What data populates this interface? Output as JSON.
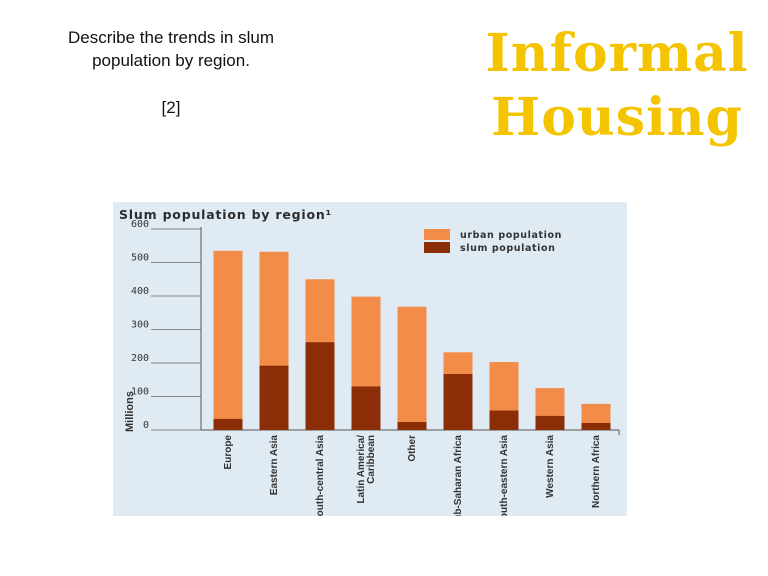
{
  "slide": {
    "question_line1": "Describe the trends in slum",
    "question_line2": "population by region.",
    "marks": "[2]",
    "title_line1": "Informal",
    "title_line2": "Housing"
  },
  "colors": {
    "title": "#f5c400",
    "urban": "#f28c48",
    "slum": "#8b2e08",
    "panel_background": "#dfeaf3"
  },
  "chart_data": {
    "type": "bar",
    "title": "Slum population by region",
    "title_marker": "¹",
    "ylabel": "Millions",
    "xlabel": "",
    "ylim": [
      0,
      600
    ],
    "yticks": [
      "0",
      "100",
      "200",
      "300",
      "400",
      "500",
      "600"
    ],
    "categories": [
      "Europe",
      "Eastern Asia",
      "South-central Asia",
      "Latin America/ Caribbean",
      "Other",
      "Sub-Saharan Africa",
      "South-eastern Asia",
      "Western Asia",
      "Northern Africa"
    ],
    "series": [
      {
        "name": "urban population",
        "color": "#f28c48",
        "values": [
          535,
          532,
          450,
          398,
          368,
          232,
          203,
          125,
          78
        ]
      },
      {
        "name": "slum population",
        "color": "#8b2e08",
        "values": [
          33,
          192,
          262,
          130,
          24,
          167,
          58,
          42,
          21
        ]
      }
    ],
    "legend_position": "top-right",
    "grid": false
  }
}
